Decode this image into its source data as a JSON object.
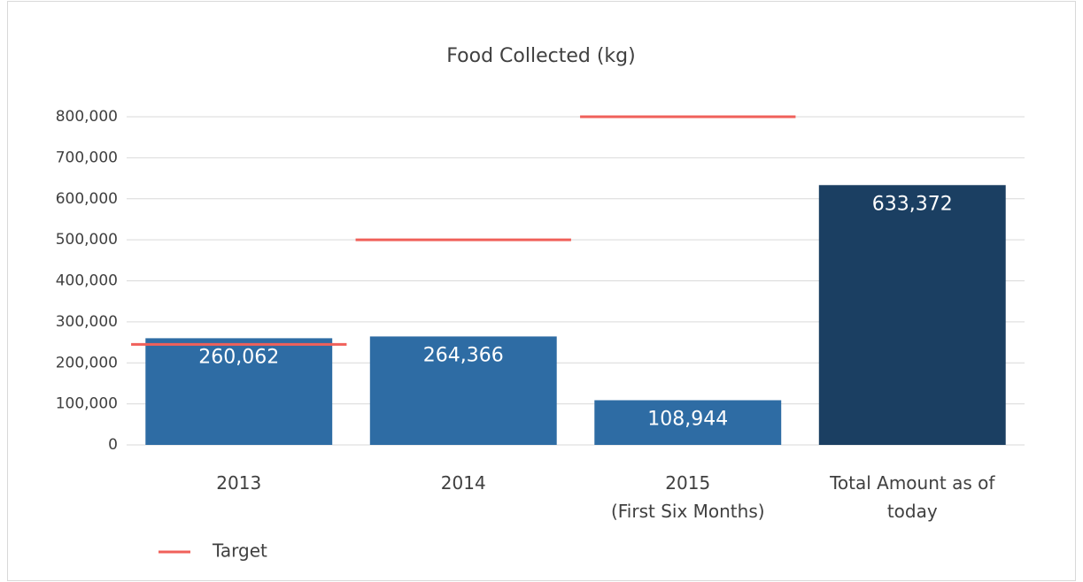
{
  "chart_data": {
    "type": "bar",
    "title": "Food Collected (kg)",
    "categories": [
      [
        "2013"
      ],
      [
        "2014"
      ],
      [
        "2015",
        "(First Six Months)"
      ],
      [
        "Total Amount as of",
        "today"
      ]
    ],
    "values": [
      260062,
      264366,
      108944,
      633372
    ],
    "value_labels": [
      "260,062",
      "264,366",
      "108,944",
      "633,372"
    ],
    "colors": [
      "#2e6ca4",
      "#2e6ca4",
      "#2e6ca4",
      "#1b3f62"
    ],
    "series": [
      {
        "name": "Target",
        "color": "#f0605a",
        "values": [
          245000,
          500000,
          800000,
          null
        ]
      }
    ],
    "ylim": [
      0,
      800000
    ],
    "yticks": [
      0,
      {
        "value": 100000,
        "label": "100,000"
      },
      {
        "value": 200000,
        "label": "200,000"
      },
      {
        "value": 300000,
        "label": "300,000"
      },
      {
        "value": 400000,
        "label": "400,000"
      },
      {
        "value": 500000,
        "label": "500,000"
      },
      {
        "value": 600000,
        "label": "600,000"
      },
      {
        "value": 700000,
        "label": "700,000"
      },
      {
        "value": 800000,
        "label": "800,000"
      }
    ],
    "grid": true,
    "legend": "bottom-left"
  }
}
